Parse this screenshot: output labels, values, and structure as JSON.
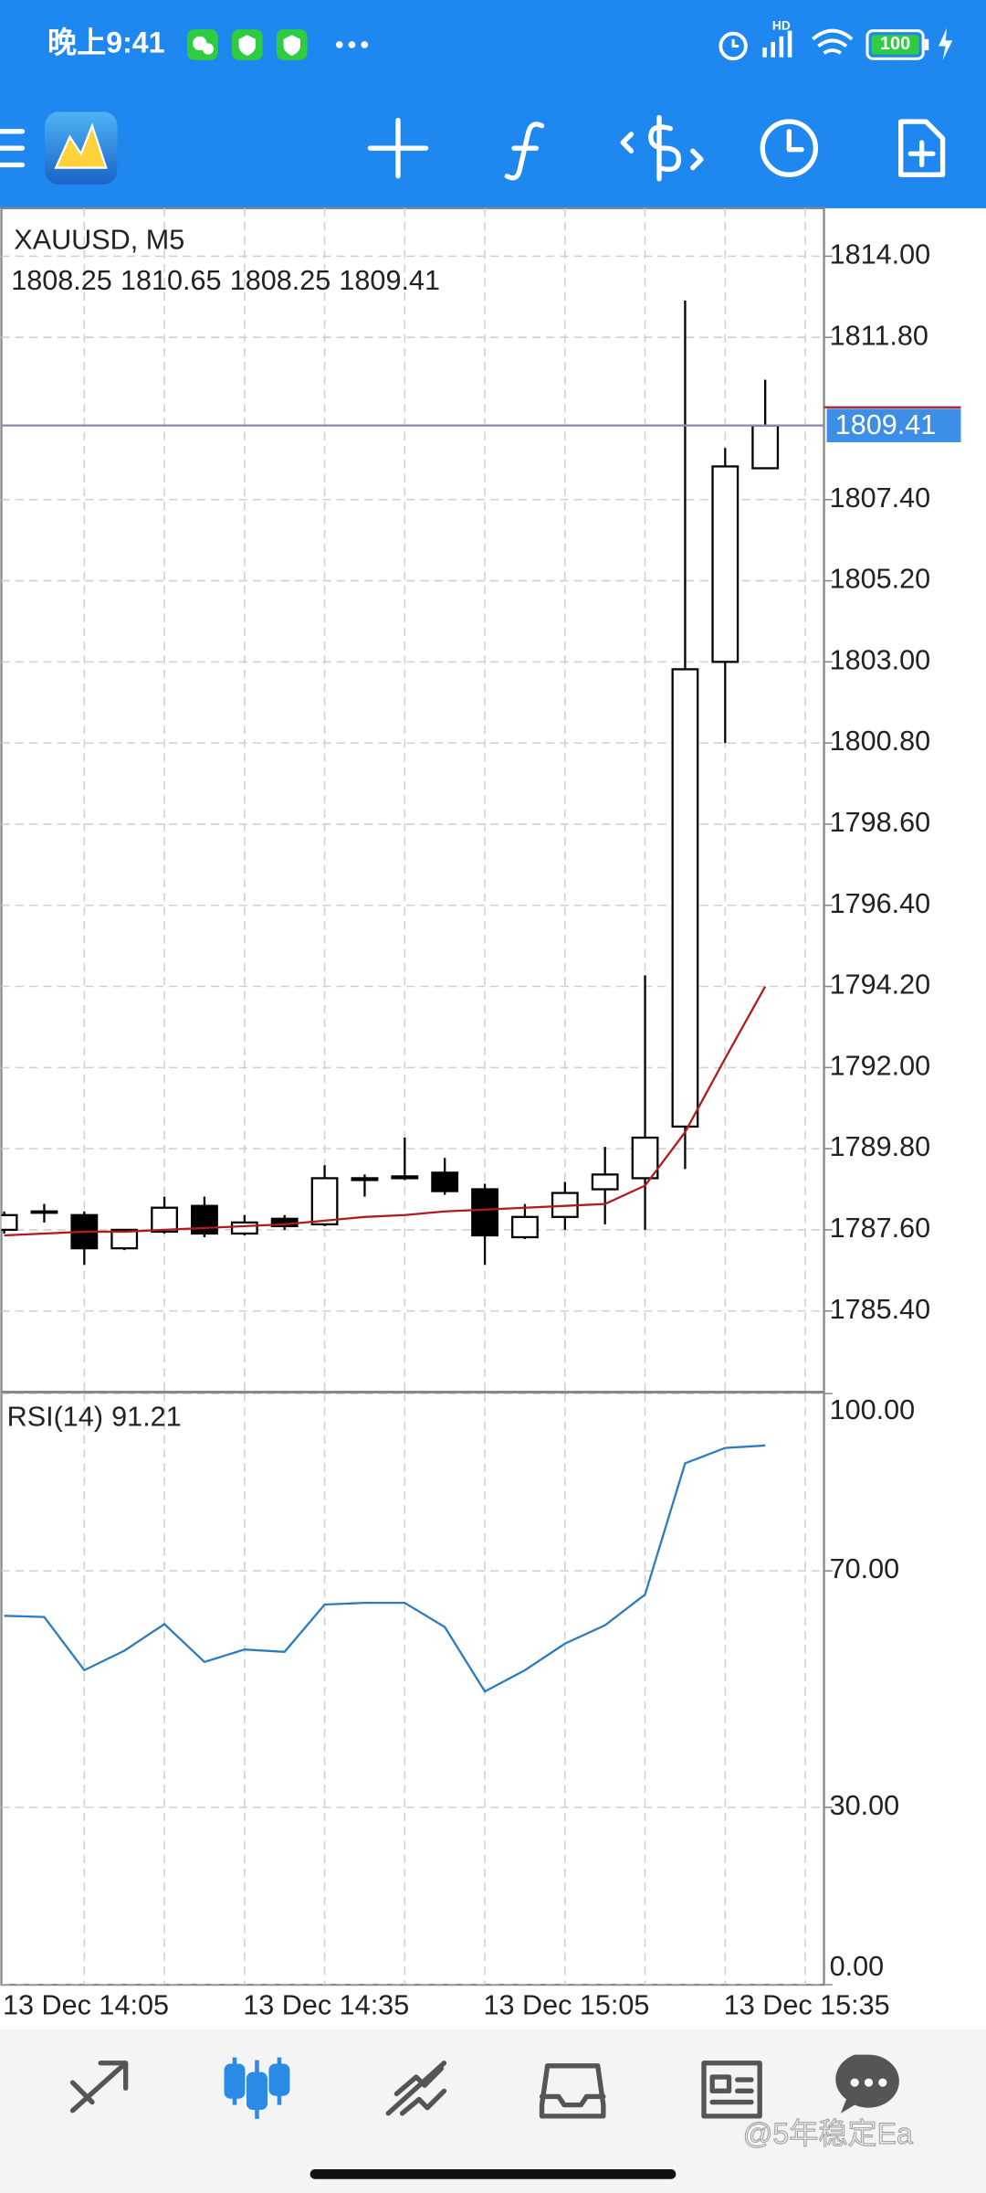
{
  "status_bar": {
    "time": "晚上9:41",
    "network": "HD",
    "battery": "100"
  },
  "chart_data": [
    {
      "type": "candlestick",
      "title": "XAUUSD, M5",
      "categories": [
        "13 Dec 14:05",
        null,
        null,
        null,
        null,
        null,
        "13 Dec 14:35",
        null,
        null,
        null,
        null,
        null,
        "13 Dec 15:05",
        null,
        null,
        null,
        null,
        null,
        "13 Dec 15:35",
        null
      ],
      "open": [
        1787.6,
        1788.1,
        1788.0,
        1787.1,
        1787.55,
        1788.25,
        1787.5,
        1787.9,
        1787.75,
        1788.95,
        1789.0,
        1789.15,
        1788.7,
        1787.4,
        1787.95,
        1788.7,
        1789.0,
        1790.4,
        1803.0,
        1808.25
      ],
      "high": [
        1788.1,
        1788.3,
        1788.1,
        1787.6,
        1788.5,
        1788.5,
        1788.0,
        1788.0,
        1789.35,
        1789.1,
        1790.1,
        1789.55,
        1788.85,
        1788.3,
        1788.9,
        1789.85,
        1794.5,
        1812.8,
        1808.8,
        1810.65
      ],
      "low": [
        1787.5,
        1787.8,
        1786.65,
        1787.05,
        1787.5,
        1787.4,
        1787.45,
        1787.6,
        1787.7,
        1788.5,
        1788.95,
        1788.55,
        1786.65,
        1787.35,
        1787.6,
        1787.75,
        1787.6,
        1789.25,
        1800.8,
        1808.25
      ],
      "close": [
        1788.0,
        1788.1,
        1787.1,
        1787.6,
        1788.2,
        1787.5,
        1787.8,
        1787.7,
        1789.0,
        1789.0,
        1789.05,
        1788.65,
        1787.45,
        1787.95,
        1788.6,
        1789.1,
        1790.1,
        1802.8,
        1808.3,
        1809.41
      ],
      "series": [
        {
          "color": "#b01c1c",
          "values": [
            1787.45,
            1787.5,
            1787.55,
            1787.55,
            1787.6,
            1787.65,
            1787.7,
            1787.75,
            1787.85,
            1787.95,
            1788.0,
            1788.1,
            1788.15,
            1788.2,
            1788.25,
            1788.3,
            1788.8,
            1790.25,
            1792.25,
            1794.2
          ]
        }
      ],
      "ylim": [
        1783.2,
        1815.3
      ],
      "yticks": [
        {
          "value": 1814,
          "label": "1814.00"
        },
        {
          "value": 1811.8,
          "label": "1811.80"
        },
        {
          "value": 1807.4,
          "label": "1807.40"
        },
        {
          "value": 1805.2,
          "label": "1805.20"
        },
        {
          "value": 1803,
          "label": "1803.00"
        },
        {
          "value": 1800.8,
          "label": "1800.80"
        },
        {
          "value": 1798.6,
          "label": "1798.60"
        },
        {
          "value": 1796.4,
          "label": "1796.40"
        },
        {
          "value": 1794.2,
          "label": "1794.20"
        },
        {
          "value": 1792,
          "label": "1792.00"
        },
        {
          "value": 1789.8,
          "label": "1789.80"
        },
        {
          "value": 1787.6,
          "label": "1787.60"
        },
        {
          "value": 1785.4,
          "label": "1785.40"
        }
      ],
      "grid": true
    },
    {
      "type": "line",
      "title": "RSI(14)",
      "series": [
        {
          "color": "#2b7cc0",
          "values": [
            62.4,
            62.2,
            53.2,
            56.5,
            61.0,
            54.6,
            56.7,
            56.3,
            64.3,
            64.6,
            64.6,
            60.5,
            49.6,
            53.2,
            57.7,
            60.8,
            66.0,
            88.2,
            90.8,
            91.21
          ]
        }
      ],
      "ylim": [
        0,
        100
      ],
      "yticks": [
        {
          "value": 100,
          "label": "100.00"
        },
        {
          "value": 70,
          "label": "70.00"
        },
        {
          "value": 30,
          "label": "30.00"
        },
        {
          "value": 0,
          "label": "0.00"
        }
      ],
      "grid": true
    }
  ],
  "watermark": "@5年稳定Ea"
}
